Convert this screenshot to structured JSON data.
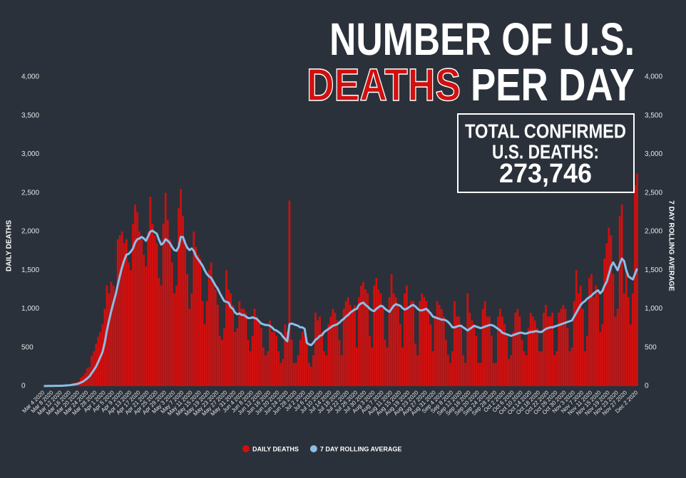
{
  "chart_data": {
    "type": "bar",
    "title": "NUMBER OF U.S.",
    "title_highlight": "DEATHS",
    "title_rest": "PER DAY",
    "annotations": [
      "TOTAL CONFIRMED",
      "U.S. DEATHS:",
      "273,746"
    ],
    "y_label": "DAILY DEATHS",
    "y2_label": "7 DAY ROLLING AVERAGE",
    "ylim": [
      0,
      4000
    ],
    "y2lim": [
      0,
      4000
    ],
    "yticks": [
      0,
      500,
      {
        "value": 1000,
        "label": "1,000"
      },
      {
        "value": 1500,
        "label": "1,500"
      },
      {
        "value": 2000,
        "label": "2,000"
      },
      {
        "value": 2500,
        "label": "2,500"
      },
      {
        "value": 3000,
        "label": "3,000"
      },
      {
        "value": 3500,
        "label": "3,500"
      },
      {
        "value": 4000,
        "label": "4,000"
      }
    ],
    "y2ticks": [
      0,
      500,
      {
        "value": 1000,
        "label": "1,000"
      },
      {
        "value": 1500,
        "label": "1,500"
      },
      {
        "value": 2000,
        "label": "2,000"
      },
      {
        "value": 2500,
        "label": "2,500"
      },
      {
        "value": 3000,
        "label": "3,000"
      },
      {
        "value": 3500,
        "label": "3,500"
      },
      {
        "value": 4000,
        "label": "4,000"
      }
    ],
    "categories": [
      "Mar 4 2020",
      null,
      null,
      null,
      "Mar 8 2020",
      null,
      null,
      null,
      "Mar 12 2020",
      null,
      null,
      null,
      "Mar 16 2020",
      null,
      null,
      null,
      "Mar 20 2020",
      null,
      null,
      null,
      "Mar 24 2020",
      null,
      null,
      null,
      "Mar 28 2020",
      null,
      null,
      null,
      "Apr 1 2020",
      null,
      null,
      null,
      "Apr 5 2020",
      null,
      null,
      null,
      "Apr 9 2020",
      null,
      null,
      null,
      "Apr 13 2020",
      null,
      null,
      null,
      "Apr 17 2020",
      null,
      null,
      null,
      "Apr 21 2020",
      null,
      null,
      null,
      "Apr 25 2020",
      null,
      null,
      null,
      "Apr 29 2020",
      null,
      null,
      null,
      "May 3 2020",
      null,
      null,
      null,
      "May 7 2020",
      null,
      null,
      null,
      "May 11 2020",
      null,
      null,
      null,
      "May 15 2020",
      null,
      null,
      null,
      "May 19 2020",
      null,
      null,
      null,
      "May 23 2020",
      null,
      null,
      null,
      "May 27 2020",
      null,
      null,
      null,
      "May 31 2020",
      null,
      null,
      null,
      "Jun 4 2020",
      null,
      null,
      null,
      "Jun 8 2020",
      null,
      null,
      null,
      "Jun 12 2020",
      null,
      null,
      null,
      "Jun 16 2020",
      null,
      null,
      null,
      "Jun 20 2020",
      null,
      null,
      null,
      "Jun 24 2020",
      null,
      null,
      null,
      "Jun 28 2020",
      null,
      null,
      null,
      "Jul 2 2020",
      null,
      null,
      null,
      "Jul 6 2020",
      null,
      null,
      null,
      "Jul 10 2020",
      null,
      null,
      null,
      "Jul 14 2020",
      null,
      null,
      null,
      "Jul 18 2020",
      null,
      null,
      null,
      "Jul 22 2020",
      null,
      null,
      null,
      "Jul 26 2020",
      null,
      null,
      null,
      "Jul 30 2020",
      null,
      null,
      null,
      "Aug 3 2020",
      null,
      null,
      null,
      "Aug 7 2020",
      null,
      null,
      null,
      "Aug 11 2020",
      null,
      null,
      null,
      "Aug 15 2020",
      null,
      null,
      null,
      "Aug 19 2020",
      null,
      null,
      null,
      "Aug 23 2020",
      null,
      null,
      null,
      "Aug 27 2020",
      null,
      null,
      null,
      "Aug 31 2020",
      null,
      null,
      null,
      "Sep 4 2020",
      null,
      null,
      null,
      "Sep 8 2020",
      null,
      null,
      null,
      "Sep 12 2020",
      null,
      null,
      null,
      "Sep 16 2020",
      null,
      null,
      null,
      "Sep 20 2020",
      null,
      null,
      null,
      "Sep 24 2020",
      null,
      null,
      null,
      "Sep 28 2020",
      null,
      null,
      null,
      "Oct 2 2020",
      null,
      null,
      null,
      "Oct 6 2020",
      null,
      null,
      null,
      "Oct 10 2020",
      null,
      null,
      null,
      "Oct 14 2020",
      null,
      null,
      null,
      "Oct 18 2020",
      null,
      null,
      null,
      "Oct 22 2020",
      null,
      null,
      null,
      "Oct 26 2020",
      null,
      null,
      null,
      "Oct 30 2020",
      null,
      null,
      null,
      "Nov 3 2020",
      null,
      null,
      null,
      "Nov 7 2020",
      null,
      null,
      null,
      "Nov 11 2020",
      null,
      null,
      null,
      "Nov 15 2020",
      null,
      null,
      null,
      "Nov 19 2020",
      null,
      null,
      null,
      "Nov 23 2020",
      null,
      null,
      null,
      "Nov 27 2020",
      null,
      null,
      null,
      null,
      "Dec 2 2020"
    ],
    "series": [
      {
        "name": "DAILY DEATHS",
        "type": "bar",
        "color": "#d0100f",
        "values": [
          1,
          1,
          2,
          3,
          2,
          4,
          3,
          7,
          9,
          9,
          12,
          17,
          23,
          36,
          46,
          50,
          60,
          110,
          130,
          170,
          230,
          250,
          390,
          450,
          550,
          640,
          700,
          800,
          1000,
          1300,
          1200,
          1350,
          1300,
          1200,
          1900,
          1950,
          2000,
          1850,
          1900,
          1600,
          1500,
          2100,
          2350,
          2250,
          2000,
          1900,
          1700,
          1550,
          2000,
          2450,
          2100,
          1950,
          1850,
          1400,
          1300,
          2100,
          2500,
          2150,
          1900,
          1600,
          1200,
          1300,
          2300,
          2550,
          2200,
          1900,
          1450,
          1000,
          1200,
          2000,
          1800,
          1700,
          1650,
          1100,
          800,
          1100,
          1500,
          1600,
          1350,
          1250,
          1050,
          650,
          600,
          750,
          1500,
          1250,
          1200,
          1050,
          700,
          750,
          1100,
          1000,
          1000,
          950,
          600,
          450,
          650,
          1000,
          900,
          850,
          750,
          500,
          400,
          450,
          850,
          700,
          700,
          650,
          450,
          300,
          350,
          800,
          700,
          2400,
          600,
          300,
          300,
          400,
          600,
          700,
          650,
          600,
          300,
          250,
          400,
          950,
          850,
          900,
          700,
          450,
          400,
          800,
          900,
          1000,
          950,
          850,
          600,
          400,
          1000,
          1100,
          1150,
          1050,
          1000,
          1050,
          500,
          1150,
          1300,
          1350,
          1250,
          1200,
          650,
          500,
          1300,
          1400,
          1250,
          1200,
          1050,
          600,
          500,
          1150,
          1450,
          1200,
          1150,
          1050,
          800,
          500,
          1200,
          1300,
          1000,
          1100,
          1100,
          550,
          400,
          1100,
          1200,
          1150,
          1100,
          1000,
          800,
          450,
          900,
          1100,
          1050,
          1000,
          900,
          600,
          400,
          300,
          450,
          1100,
          900,
          900,
          800,
          400,
          300,
          1200,
          950,
          850,
          800,
          650,
          300,
          300,
          1000,
          1100,
          900,
          900,
          650,
          300,
          300,
          900,
          1000,
          900,
          800,
          650,
          350,
          400,
          700,
          950,
          1000,
          900,
          600,
          450,
          400,
          750,
          950,
          900,
          850,
          750,
          450,
          450,
          950,
          1050,
          900,
          900,
          950,
          400,
          450,
          950,
          1000,
          1050,
          1000,
          750,
          450,
          500,
          1100,
          1500,
          1200,
          1300,
          1000,
          450,
          650,
          1400,
          1450,
          1150,
          1300,
          1200,
          700,
          800,
          1650,
          1850,
          2050,
          1950,
          1450,
          900,
          1000,
          2200,
          2350,
          1200,
          1500,
          1150,
          800,
          1200,
          2600,
          2750
        ]
      },
      {
        "name": "7 DAY ROLLING AVERAGE",
        "type": "line",
        "axis": "y2",
        "color": "#8cbde6",
        "values": [
          1,
          1,
          2,
          2,
          2,
          3,
          3,
          4,
          5,
          6,
          8,
          10,
          12,
          16,
          21,
          26,
          33,
          46,
          59,
          79,
          101,
          127,
          168,
          207,
          253,
          312,
          376,
          442,
          560,
          720,
          850,
          970,
          1080,
          1180,
          1310,
          1430,
          1540,
          1630,
          1700,
          1710,
          1740,
          1780,
          1860,
          1900,
          1910,
          1930,
          1910,
          1880,
          1940,
          2000,
          2010,
          1990,
          1970,
          1890,
          1830,
          1850,
          1900,
          1880,
          1850,
          1800,
          1760,
          1750,
          1800,
          1930,
          1930,
          1850,
          1790,
          1760,
          1780,
          1750,
          1680,
          1640,
          1600,
          1560,
          1500,
          1450,
          1420,
          1400,
          1350,
          1300,
          1260,
          1200,
          1150,
          1100,
          1090,
          1080,
          1020,
          1000,
          950,
          930,
          940,
          920,
          920,
          900,
          880,
          880,
          890,
          880,
          870,
          840,
          810,
          800,
          790,
          790,
          780,
          760,
          730,
          720,
          700,
          680,
          640,
          610,
          580,
          800,
          810,
          800,
          790,
          780,
          760,
          760,
          740,
          560,
          540,
          530,
          560,
          600,
          620,
          650,
          660,
          700,
          720,
          740,
          760,
          780,
          790,
          800,
          820,
          850,
          870,
          900,
          920,
          950,
          970,
          990,
          1000,
          1050,
          1070,
          1080,
          1050,
          1030,
          1000,
          980,
          970,
          1000,
          1020,
          1040,
          1030,
          1000,
          980,
          960,
          1000,
          1040,
          1060,
          1050,
          1040,
          1010,
          990,
          1000,
          1020,
          1040,
          1050,
          1030,
          1000,
          980,
          980,
          990,
          1000,
          970,
          940,
          900,
          890,
          880,
          870,
          860,
          860,
          850,
          830,
          800,
          760,
          760,
          770,
          780,
          780,
          760,
          740,
          720,
          740,
          760,
          780,
          770,
          760,
          750,
          760,
          770,
          780,
          790,
          790,
          780,
          760,
          740,
          720,
          690,
          680,
          670,
          660,
          650,
          660,
          670,
          680,
          690,
          690,
          680,
          680,
          690,
          700,
          700,
          710,
          710,
          700,
          700,
          720,
          740,
          750,
          760,
          760,
          770,
          780,
          790,
          800,
          810,
          820,
          830,
          840,
          850,
          900,
          950,
          1000,
          1050,
          1080,
          1100,
          1130,
          1150,
          1170,
          1200,
          1220,
          1240,
          1200,
          1230,
          1300,
          1350,
          1450,
          1550,
          1600,
          1550,
          1500,
          1580,
          1650,
          1620,
          1500,
          1420,
          1400,
          1380,
          1450,
          1520
        ]
      }
    ]
  }
}
